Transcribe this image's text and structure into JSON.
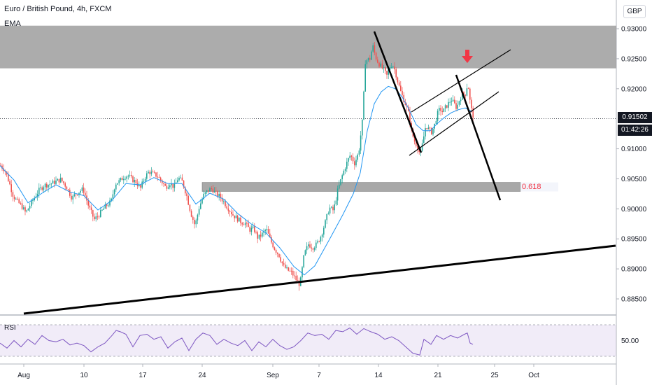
{
  "header": {
    "title": "Euro / British Pound, 4h, FXCM",
    "indicator": "EMA",
    "currency": "GBP"
  },
  "price_tags": {
    "last_price": "0.91502",
    "countdown": "01:42:26"
  },
  "fib_label": "0.618",
  "rsi": {
    "label": "RSI",
    "tick": "50.00"
  },
  "colors": {
    "up": "#26a69a",
    "down": "#ef5350",
    "ema": "#2196f3",
    "rsi": "#7e57c2",
    "zone": "#9e9e9e",
    "arrow": "#f23645"
  },
  "chart_data": {
    "type": "candlestick",
    "title": "Euro / British Pound, 4h, FXCM",
    "y_ticks": [
      0.93,
      0.925,
      0.92,
      0.915,
      0.91,
      0.905,
      0.9,
      0.895,
      0.89,
      0.885
    ],
    "y_tick_labels": [
      "0.93000",
      "0.92500",
      "0.92000",
      "",
      "0.91000",
      "0.90500",
      "0.90000",
      "0.89500",
      "0.89000",
      "0.88500"
    ],
    "ylim": [
      0.8818,
      0.9326
    ],
    "x_tick_labels": [
      "Aug",
      "10",
      "17",
      "24",
      "Sep",
      "7",
      "14",
      "21",
      "25",
      "Oct"
    ],
    "last_price": 0.91502,
    "resistance_zone": [
      0.9234,
      0.9305
    ],
    "fib_zone": {
      "low": 0.9029,
      "high": 0.9044,
      "label": "0.618"
    },
    "close_path": [
      [
        0,
        0.9072
      ],
      [
        6,
        0.9065
      ],
      [
        12,
        0.9045
      ],
      [
        18,
        0.9022
      ],
      [
        24,
        0.9012
      ],
      [
        30,
        0.9005
      ],
      [
        36,
        0.8993
      ],
      [
        42,
        0.9006
      ],
      [
        48,
        0.9018
      ],
      [
        55,
        0.9031
      ],
      [
        62,
        0.9039
      ],
      [
        70,
        0.9041
      ],
      [
        78,
        0.9045
      ],
      [
        86,
        0.9049
      ],
      [
        94,
        0.9037
      ],
      [
        102,
        0.9018
      ],
      [
        110,
        0.9027
      ],
      [
        118,
        0.9033
      ],
      [
        126,
        0.9004
      ],
      [
        134,
        0.8982
      ],
      [
        142,
        0.8992
      ],
      [
        150,
        0.9004
      ],
      [
        158,
        0.9012
      ],
      [
        164,
        0.9042
      ],
      [
        170,
        0.9046
      ],
      [
        176,
        0.9053
      ],
      [
        182,
        0.9056
      ],
      [
        188,
        0.9049
      ],
      [
        194,
        0.9044
      ],
      [
        200,
        0.9034
      ],
      [
        206,
        0.9052
      ],
      [
        212,
        0.9062
      ],
      [
        218,
        0.9058
      ],
      [
        224,
        0.9055
      ],
      [
        230,
        0.9046
      ],
      [
        236,
        0.9036
      ],
      [
        242,
        0.9043
      ],
      [
        248,
        0.9036
      ],
      [
        254,
        0.9052
      ],
      [
        260,
        0.9045
      ],
      [
        266,
        0.9022
      ],
      [
        272,
        0.8993
      ],
      [
        278,
        0.8972
      ],
      [
        284,
        0.9003
      ],
      [
        290,
        0.9022
      ],
      [
        296,
        0.903
      ],
      [
        302,
        0.9034
      ],
      [
        308,
        0.9025
      ],
      [
        314,
        0.902
      ],
      [
        320,
        0.901
      ],
      [
        326,
        0.9
      ],
      [
        332,
        0.899
      ],
      [
        338,
        0.8984
      ],
      [
        344,
        0.8978
      ],
      [
        350,
        0.8976
      ],
      [
        356,
        0.8965
      ],
      [
        362,
        0.8967
      ],
      [
        368,
        0.8951
      ],
      [
        374,
        0.8958
      ],
      [
        380,
        0.8966
      ],
      [
        386,
        0.8947
      ],
      [
        392,
        0.8933
      ],
      [
        398,
        0.8923
      ],
      [
        404,
        0.8905
      ],
      [
        410,
        0.8898
      ],
      [
        416,
        0.8894
      ],
      [
        422,
        0.8883
      ],
      [
        428,
        0.8873
      ],
      [
        434,
        0.8924
      ],
      [
        440,
        0.8941
      ],
      [
        446,
        0.8936
      ],
      [
        452,
        0.8941
      ],
      [
        458,
        0.8955
      ],
      [
        464,
        0.8977
      ],
      [
        470,
        0.9002
      ],
      [
        476,
        0.8997
      ],
      [
        482,
        0.9031
      ],
      [
        488,
        0.9054
      ],
      [
        494,
        0.9074
      ],
      [
        500,
        0.909
      ],
      [
        506,
        0.9076
      ],
      [
        512,
        0.9094
      ],
      [
        518,
        0.9155
      ],
      [
        521,
        0.9245
      ],
      [
        524,
        0.9248
      ],
      [
        528,
        0.925
      ],
      [
        532,
        0.9272
      ],
      [
        536,
        0.9253
      ],
      [
        540,
        0.9243
      ],
      [
        544,
        0.9237
      ],
      [
        548,
        0.9231
      ],
      [
        552,
        0.9221
      ],
      [
        556,
        0.9236
      ],
      [
        560,
        0.9241
      ],
      [
        564,
        0.923
      ],
      [
        568,
        0.9211
      ],
      [
        572,
        0.9195
      ],
      [
        576,
        0.9183
      ],
      [
        580,
        0.9171
      ],
      [
        584,
        0.9155
      ],
      [
        588,
        0.9126
      ],
      [
        592,
        0.9112
      ],
      [
        596,
        0.9104
      ],
      [
        600,
        0.9089
      ],
      [
        604,
        0.9114
      ],
      [
        608,
        0.914
      ],
      [
        612,
        0.9132
      ],
      [
        616,
        0.9128
      ],
      [
        620,
        0.9138
      ],
      [
        624,
        0.9157
      ],
      [
        628,
        0.9167
      ],
      [
        632,
        0.9161
      ],
      [
        636,
        0.9169
      ],
      [
        640,
        0.9175
      ],
      [
        644,
        0.9182
      ],
      [
        648,
        0.9176
      ],
      [
        652,
        0.9168
      ],
      [
        656,
        0.9182
      ],
      [
        660,
        0.9191
      ],
      [
        664,
        0.919
      ],
      [
        668,
        0.921
      ],
      [
        672,
        0.917
      ],
      [
        676,
        0.9153
      ]
    ],
    "ema_path": [
      [
        0,
        0.9072
      ],
      [
        20,
        0.9048
      ],
      [
        40,
        0.901
      ],
      [
        60,
        0.9026
      ],
      [
        80,
        0.904
      ],
      [
        100,
        0.9028
      ],
      [
        120,
        0.9022
      ],
      [
        140,
        0.8998
      ],
      [
        160,
        0.9014
      ],
      [
        180,
        0.9042
      ],
      [
        200,
        0.904
      ],
      [
        220,
        0.9052
      ],
      [
        240,
        0.9042
      ],
      [
        260,
        0.9042
      ],
      [
        280,
        0.9008
      ],
      [
        300,
        0.9026
      ],
      [
        320,
        0.9016
      ],
      [
        340,
        0.8992
      ],
      [
        360,
        0.8974
      ],
      [
        380,
        0.896
      ],
      [
        400,
        0.8935
      ],
      [
        420,
        0.8904
      ],
      [
        435,
        0.889
      ],
      [
        450,
        0.8905
      ],
      [
        470,
        0.8947
      ],
      [
        490,
        0.899
      ],
      [
        505,
        0.9025
      ],
      [
        515,
        0.906
      ],
      [
        525,
        0.913
      ],
      [
        535,
        0.9175
      ],
      [
        545,
        0.9195
      ],
      [
        555,
        0.9204
      ],
      [
        565,
        0.92
      ],
      [
        575,
        0.9186
      ],
      [
        585,
        0.9165
      ],
      [
        595,
        0.914
      ],
      [
        605,
        0.913
      ],
      [
        615,
        0.913
      ],
      [
        625,
        0.9142
      ],
      [
        635,
        0.9152
      ],
      [
        645,
        0.916
      ],
      [
        655,
        0.9165
      ],
      [
        665,
        0.9168
      ],
      [
        675,
        0.9162
      ]
    ],
    "rsi_path": [
      [
        0,
        46
      ],
      [
        10,
        38
      ],
      [
        20,
        50
      ],
      [
        30,
        40
      ],
      [
        40,
        52
      ],
      [
        50,
        44
      ],
      [
        60,
        58
      ],
      [
        70,
        50
      ],
      [
        80,
        48
      ],
      [
        90,
        52
      ],
      [
        100,
        43
      ],
      [
        110,
        46
      ],
      [
        120,
        42
      ],
      [
        130,
        32
      ],
      [
        140,
        40
      ],
      [
        150,
        46
      ],
      [
        160,
        58
      ],
      [
        166,
        66
      ],
      [
        172,
        64
      ],
      [
        180,
        60
      ],
      [
        190,
        40
      ],
      [
        200,
        58
      ],
      [
        210,
        60
      ],
      [
        220,
        52
      ],
      [
        230,
        56
      ],
      [
        240,
        38
      ],
      [
        250,
        48
      ],
      [
        260,
        54
      ],
      [
        270,
        34
      ],
      [
        280,
        52
      ],
      [
        290,
        62
      ],
      [
        300,
        58
      ],
      [
        310,
        44
      ],
      [
        320,
        52
      ],
      [
        330,
        46
      ],
      [
        340,
        42
      ],
      [
        350,
        50
      ],
      [
        360,
        34
      ],
      [
        370,
        48
      ],
      [
        380,
        40
      ],
      [
        390,
        52
      ],
      [
        400,
        42
      ],
      [
        410,
        36
      ],
      [
        420,
        40
      ],
      [
        430,
        50
      ],
      [
        440,
        62
      ],
      [
        450,
        58
      ],
      [
        460,
        60
      ],
      [
        470,
        52
      ],
      [
        480,
        66
      ],
      [
        490,
        64
      ],
      [
        500,
        70
      ],
      [
        510,
        60
      ],
      [
        520,
        69
      ],
      [
        530,
        64
      ],
      [
        540,
        60
      ],
      [
        550,
        52
      ],
      [
        560,
        56
      ],
      [
        570,
        50
      ],
      [
        580,
        40
      ],
      [
        590,
        30
      ],
      [
        600,
        27
      ],
      [
        606,
        52
      ],
      [
        616,
        44
      ],
      [
        624,
        58
      ],
      [
        634,
        52
      ],
      [
        644,
        58
      ],
      [
        654,
        54
      ],
      [
        664,
        60
      ],
      [
        668,
        62
      ],
      [
        672,
        46
      ],
      [
        676,
        44
      ]
    ],
    "rsi_tick": 50,
    "drawings": {
      "lower_trendline": [
        [
          34,
          448
        ],
        [
          880,
          351
        ]
      ],
      "down_leg": [
        [
          535,
          45
        ],
        [
          602,
          218
        ]
      ],
      "projection": [
        [
          652,
          107
        ],
        [
          715,
          286
        ]
      ],
      "channel_upper": [
        [
          588,
          160
        ],
        [
          730,
          71
        ]
      ],
      "channel_lower": [
        [
          585,
          222
        ],
        [
          713,
          131
        ]
      ],
      "arrow_x": 668
    }
  }
}
